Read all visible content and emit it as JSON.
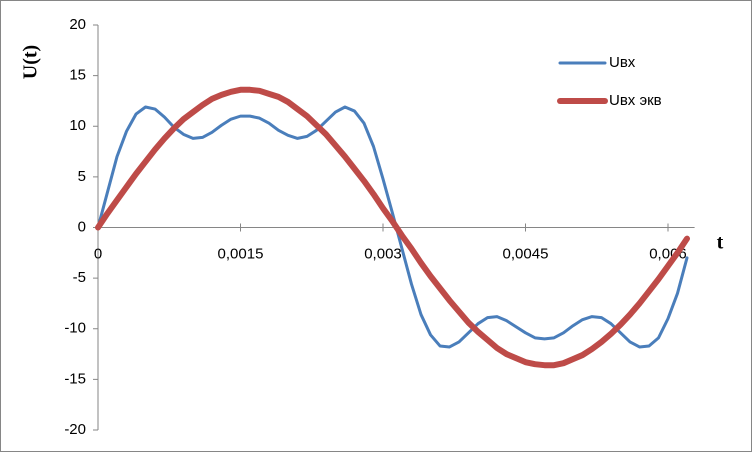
{
  "chart_data": {
    "type": "line",
    "y_label": "U(t)",
    "x_label": "t",
    "x": [
      0,
      0.0001,
      0.0002,
      0.0003,
      0.0004,
      0.0005,
      0.0006,
      0.0007,
      0.0008,
      0.0009,
      0.001,
      0.0011,
      0.0012,
      0.0013,
      0.0014,
      0.0015,
      0.0016,
      0.0017,
      0.0018,
      0.0019,
      0.002,
      0.0021,
      0.0022,
      0.0023,
      0.0024,
      0.0025,
      0.0026,
      0.0027,
      0.0028,
      0.0029,
      0.003,
      0.0031,
      0.0032,
      0.0033,
      0.0034,
      0.0035,
      0.0036,
      0.0037,
      0.0038,
      0.0039,
      0.004,
      0.0041,
      0.0042,
      0.0043,
      0.0044,
      0.0045,
      0.0046,
      0.0047,
      0.0048,
      0.0049,
      0.005,
      0.0051,
      0.0052,
      0.0053,
      0.0054,
      0.0055,
      0.0056,
      0.0057,
      0.0058,
      0.0059,
      0.006,
      0.0061,
      0.0062
    ],
    "series": [
      {
        "name": "Uвх",
        "color": "#4a7ebb",
        "width": 3,
        "values": [
          0,
          3.5,
          7,
          9.5,
          11.2,
          11.9,
          11.7,
          10.9,
          9.9,
          9.2,
          8.8,
          8.9,
          9.4,
          10.1,
          10.7,
          11.0,
          11.0,
          10.8,
          10.3,
          9.6,
          9.1,
          8.8,
          9.0,
          9.6,
          10.5,
          11.4,
          11.9,
          11.5,
          10.3,
          8.0,
          4.8,
          1.4,
          -2.1,
          -5.6,
          -8.6,
          -10.6,
          -11.7,
          -11.8,
          -11.3,
          -10.4,
          -9.5,
          -8.9,
          -8.8,
          -9.2,
          -9.8,
          -10.4,
          -10.9,
          -11.0,
          -10.9,
          -10.4,
          -9.7,
          -9.1,
          -8.8,
          -8.9,
          -9.5,
          -10.4,
          -11.3,
          -11.8,
          -11.7,
          -10.9,
          -9.0,
          -6.5,
          -3.0
        ]
      },
      {
        "name": "Uвх экв",
        "color": "#be4b48",
        "width": 6,
        "values": [
          0,
          1.4,
          2.7,
          4.0,
          5.3,
          6.5,
          7.7,
          8.8,
          9.8,
          10.7,
          11.4,
          12.1,
          12.7,
          13.1,
          13.4,
          13.6,
          13.6,
          13.5,
          13.2,
          12.9,
          12.4,
          11.7,
          11.0,
          10.1,
          9.2,
          8.1,
          7.0,
          5.8,
          4.6,
          3.3,
          1.9,
          0.6,
          -0.8,
          -2.1,
          -3.5,
          -4.8,
          -6.0,
          -7.2,
          -8.3,
          -9.4,
          -10.3,
          -11.1,
          -11.9,
          -12.5,
          -12.9,
          -13.3,
          -13.5,
          -13.6,
          -13.6,
          -13.4,
          -13.0,
          -12.6,
          -12.0,
          -11.3,
          -10.5,
          -9.6,
          -8.6,
          -7.5,
          -6.3,
          -5.1,
          -3.8,
          -2.5,
          -1.1
        ]
      }
    ],
    "xlim": [
      0,
      0.00628
    ],
    "xticks": [
      0,
      {
        "value": 0.0015,
        "label": "0,0015"
      },
      {
        "value": 0.003,
        "label": "0,003"
      },
      {
        "value": 0.0045,
        "label": "0,0045"
      },
      {
        "value": 0.006,
        "label": "0,006"
      }
    ],
    "ylim": [
      -20,
      20
    ],
    "yticks": [
      -20,
      -15,
      -10,
      -5,
      0,
      5,
      10,
      15,
      20
    ],
    "legend": "top-right",
    "grid": false
  }
}
